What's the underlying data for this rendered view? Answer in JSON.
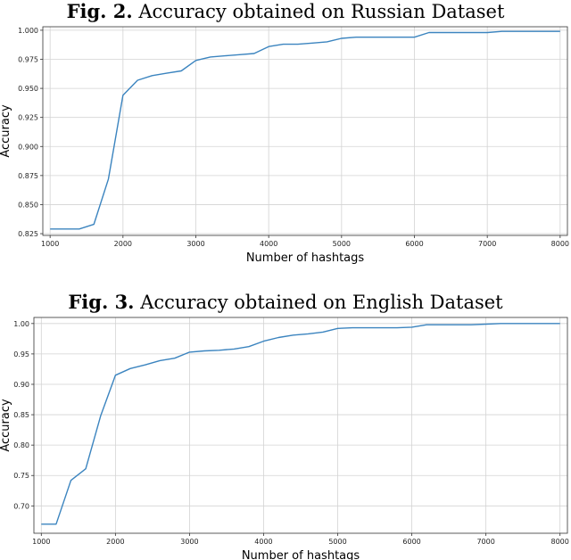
{
  "chart_data": [
    {
      "type": "line",
      "title": {
        "prefix": "Fig. 2.",
        "text": "Accuracy obtained on Russian Dataset"
      },
      "xlabel": "Number of hashtags",
      "ylabel": "Accuracy",
      "xlim": [
        900,
        8100
      ],
      "ylim": [
        0.8235,
        1.003
      ],
      "xticks": [
        1000,
        2000,
        3000,
        4000,
        5000,
        6000,
        7000,
        8000
      ],
      "yticks": [
        0.825,
        0.85,
        0.875,
        0.9,
        0.925,
        0.95,
        0.975,
        1.0
      ],
      "ytick_labels": [
        "0.825",
        "0.850",
        "0.875",
        "0.900",
        "0.925",
        "0.950",
        "0.975",
        "1.000"
      ],
      "grid": true,
      "line_color": "#3b84bf",
      "series": [
        {
          "x": [
            1000,
            1200,
            1400,
            1600,
            1800,
            2000,
            2200,
            2400,
            2600,
            2800,
            3000,
            3200,
            3400,
            3600,
            3800,
            4000,
            4200,
            4400,
            4600,
            4800,
            5000,
            5200,
            5400,
            5600,
            5800,
            6000,
            6200,
            6400,
            6600,
            6800,
            7000,
            7200,
            7400,
            7600,
            7800,
            8000
          ],
          "y": [
            0.829,
            0.829,
            0.829,
            0.833,
            0.872,
            0.944,
            0.957,
            0.961,
            0.963,
            0.965,
            0.974,
            0.977,
            0.978,
            0.979,
            0.98,
            0.986,
            0.988,
            0.988,
            0.989,
            0.99,
            0.993,
            0.994,
            0.994,
            0.994,
            0.994,
            0.994,
            0.998,
            0.998,
            0.998,
            0.998,
            0.998,
            0.999,
            0.999,
            0.999,
            0.999,
            0.999
          ]
        }
      ]
    },
    {
      "type": "line",
      "title": {
        "prefix": "Fig. 3.",
        "text": "Accuracy obtained on English Dataset"
      },
      "xlabel": "Number of hashtags",
      "ylabel": "Accuracy",
      "xlim": [
        900,
        8100
      ],
      "ylim": [
        0.655,
        1.01
      ],
      "xticks": [
        1000,
        2000,
        3000,
        4000,
        5000,
        6000,
        7000,
        8000
      ],
      "yticks": [
        0.7,
        0.75,
        0.8,
        0.85,
        0.9,
        0.95,
        1.0
      ],
      "ytick_labels": [
        "0.70",
        "0.75",
        "0.80",
        "0.85",
        "0.90",
        "0.95",
        "1.00"
      ],
      "grid": true,
      "line_color": "#3b84bf",
      "series": [
        {
          "x": [
            1000,
            1200,
            1400,
            1600,
            1800,
            2000,
            2200,
            2400,
            2600,
            2800,
            3000,
            3200,
            3400,
            3600,
            3800,
            4000,
            4200,
            4400,
            4600,
            4800,
            5000,
            5200,
            5400,
            5600,
            5800,
            6000,
            6200,
            6400,
            6600,
            6800,
            7000,
            7200,
            7400,
            7600,
            7800,
            8000
          ],
          "y": [
            0.67,
            0.67,
            0.742,
            0.761,
            0.848,
            0.915,
            0.926,
            0.932,
            0.939,
            0.943,
            0.953,
            0.955,
            0.956,
            0.958,
            0.962,
            0.971,
            0.977,
            0.981,
            0.983,
            0.986,
            0.992,
            0.993,
            0.993,
            0.993,
            0.993,
            0.994,
            0.998,
            0.998,
            0.998,
            0.998,
            0.999,
            1.0,
            1.0,
            1.0,
            1.0,
            1.0
          ]
        }
      ]
    }
  ]
}
